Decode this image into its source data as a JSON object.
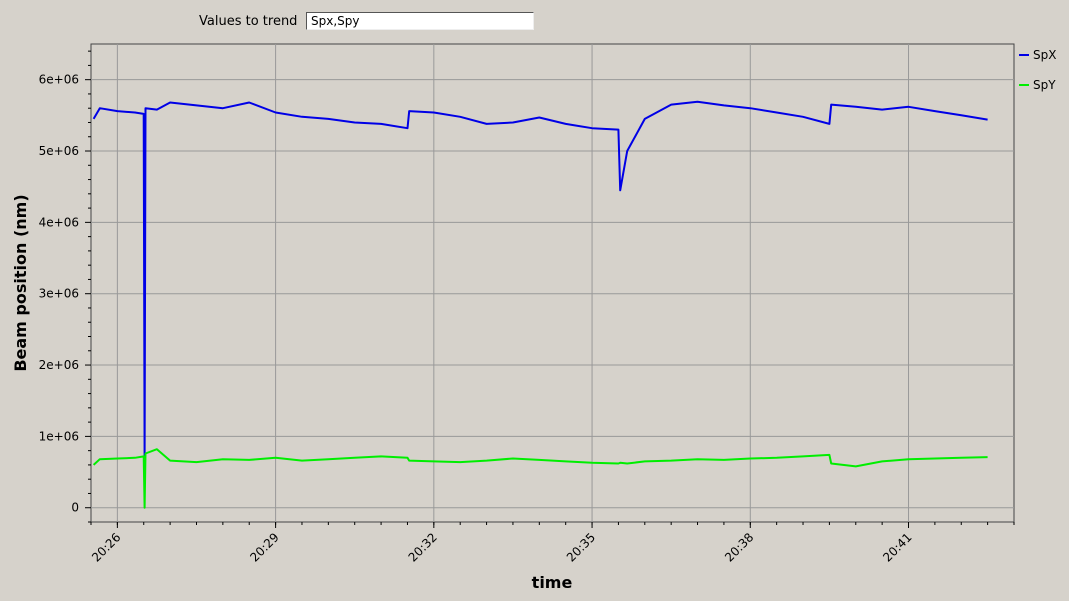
{
  "controls": {
    "trend_label": "Values to trend",
    "trend_value": "Spx,Spy"
  },
  "colors": {
    "SpX": "#0000e6",
    "SpY": "#00ee00"
  },
  "chart_data": {
    "type": "line",
    "xlabel": "time",
    "ylabel": "Beam position (nm)",
    "x_range": [
      "20:25:30",
      "20:43:00"
    ],
    "y_range": [
      -200000,
      6500000
    ],
    "x_ticks": [
      "20:26",
      "20:29",
      "20:32",
      "20:35",
      "20:38",
      "20:41"
    ],
    "y_ticks": [
      "0",
      "1e+06",
      "2e+06",
      "3e+06",
      "4e+06",
      "5e+06",
      "6e+06"
    ],
    "grid": true,
    "legend_position": "right",
    "series": [
      {
        "name": "SpX",
        "x": [
          "20:25:33",
          "20:25:40",
          "20:26:00",
          "20:26:20",
          "20:26:30",
          "20:26:31",
          "20:26:32",
          "20:26:45",
          "20:27:00",
          "20:27:30",
          "20:28:00",
          "20:28:30",
          "20:29:00",
          "20:29:30",
          "20:30:00",
          "20:30:30",
          "20:31:00",
          "20:31:30",
          "20:31:32",
          "20:32:00",
          "20:32:30",
          "20:33:00",
          "20:33:30",
          "20:34:00",
          "20:34:30",
          "20:35:00",
          "20:35:30",
          "20:35:32",
          "20:35:40",
          "20:36:00",
          "20:36:30",
          "20:37:00",
          "20:37:30",
          "20:38:00",
          "20:38:30",
          "20:39:00",
          "20:39:30",
          "20:39:32",
          "20:40:00",
          "20:40:30",
          "20:41:00",
          "20:41:30",
          "20:42:00",
          "20:42:30"
        ],
        "y": [
          5450000,
          5600000,
          5560000,
          5540000,
          5520000,
          700000,
          5600000,
          5580000,
          5680000,
          5640000,
          5600000,
          5680000,
          5540000,
          5480000,
          5450000,
          5400000,
          5380000,
          5320000,
          5560000,
          5540000,
          5480000,
          5380000,
          5400000,
          5470000,
          5380000,
          5320000,
          5300000,
          4450000,
          5000000,
          5450000,
          5650000,
          5690000,
          5640000,
          5600000,
          5540000,
          5480000,
          5380000,
          5650000,
          5620000,
          5580000,
          5620000,
          5560000,
          5500000,
          5440000
        ]
      },
      {
        "name": "SpY",
        "x": [
          "20:25:33",
          "20:25:40",
          "20:26:00",
          "20:26:20",
          "20:26:30",
          "20:26:31",
          "20:26:32",
          "20:26:45",
          "20:27:00",
          "20:27:30",
          "20:28:00",
          "20:28:30",
          "20:29:00",
          "20:29:30",
          "20:30:00",
          "20:30:30",
          "20:31:00",
          "20:31:30",
          "20:31:32",
          "20:32:00",
          "20:32:30",
          "20:33:00",
          "20:33:30",
          "20:34:00",
          "20:34:30",
          "20:35:00",
          "20:35:30",
          "20:35:32",
          "20:35:40",
          "20:36:00",
          "20:36:30",
          "20:37:00",
          "20:37:30",
          "20:38:00",
          "20:38:30",
          "20:39:00",
          "20:39:30",
          "20:39:32",
          "20:40:00",
          "20:40:30",
          "20:41:00",
          "20:41:30",
          "20:42:00",
          "20:42:30"
        ],
        "y": [
          600000,
          680000,
          690000,
          700000,
          720000,
          0,
          760000,
          820000,
          660000,
          640000,
          680000,
          670000,
          700000,
          660000,
          680000,
          700000,
          720000,
          700000,
          660000,
          650000,
          640000,
          660000,
          690000,
          670000,
          650000,
          630000,
          620000,
          630000,
          620000,
          650000,
          660000,
          680000,
          670000,
          690000,
          700000,
          720000,
          740000,
          620000,
          580000,
          650000,
          680000,
          690000,
          700000,
          710000
        ]
      }
    ]
  }
}
